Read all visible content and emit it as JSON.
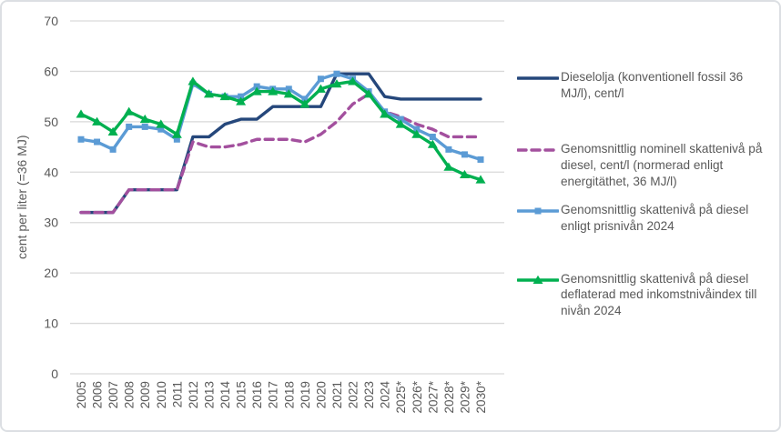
{
  "chart_data": {
    "type": "line",
    "title": "",
    "ylabel": "cent per liter (=36 MJ)",
    "xlabel": "",
    "ylim": [
      0,
      70
    ],
    "y_ticks": [
      0,
      10,
      20,
      30,
      40,
      50,
      60,
      70
    ],
    "grid": true,
    "legend_position": "right",
    "categories": [
      "2005",
      "2006",
      "2007",
      "2008",
      "2009",
      "2010",
      "2011",
      "2012",
      "2013",
      "2014",
      "2015",
      "2016",
      "2017",
      "2018",
      "2019",
      "2020",
      "2021",
      "2022",
      "2023",
      "2024",
      "2025*",
      "2026*",
      "2027*",
      "2028*",
      "2029*",
      "2030*"
    ],
    "series": [
      {
        "name": "Dieselolja (konventionell fossil 36 MJ/l), cent/l",
        "color": "#25477b",
        "style": "solid",
        "marker": "none",
        "values": [
          32,
          32,
          32,
          36.5,
          36.5,
          36.5,
          36.5,
          47,
          47,
          49.5,
          50.5,
          50.5,
          53,
          53,
          53,
          53,
          59.5,
          59.5,
          59.5,
          55,
          54.5,
          54.5,
          54.5,
          54.5,
          54.5,
          54.5
        ]
      },
      {
        "name": "Genomsnittlig nominell skattenivå på diesel, cent/l (normerad enligt energitäthet, 36 MJ/l)",
        "color": "#a3509e",
        "style": "dashed",
        "marker": "none",
        "values": [
          32,
          32,
          32,
          36.5,
          36.5,
          36.5,
          36.5,
          46,
          45,
          45,
          45.5,
          46.5,
          46.5,
          46.5,
          46,
          47.5,
          50,
          53.5,
          55.5,
          52,
          51,
          49.5,
          48.5,
          47,
          47,
          47
        ]
      },
      {
        "name": "Genomsnittlig skattenivå på diesel enligt prisnivån 2024",
        "color": "#5b9bd5",
        "style": "solid",
        "marker": "square",
        "values": [
          46.5,
          46,
          44.5,
          49,
          49,
          48.5,
          46.5,
          57.5,
          55.5,
          55,
          55,
          57,
          56.5,
          56.5,
          54.5,
          58.5,
          59.5,
          58.5,
          56,
          52,
          50.5,
          48.5,
          47,
          44.5,
          43.5,
          42.5
        ]
      },
      {
        "name": "Genomsnittlig skattenivå på diesel deflaterad med inkomstnivåindex till nivån 2024",
        "color": "#00b050",
        "style": "solid",
        "marker": "triangle",
        "values": [
          51.5,
          50,
          48,
          52,
          50.5,
          49.5,
          47.5,
          58,
          55.5,
          55,
          54,
          56,
          56,
          55.5,
          53.5,
          56.5,
          57.5,
          58,
          55.5,
          51.5,
          49.5,
          47.5,
          45.5,
          41,
          39.5,
          38.5
        ]
      }
    ],
    "axis_text_color": "#595959",
    "gridline_color": "#d9d9d9"
  }
}
